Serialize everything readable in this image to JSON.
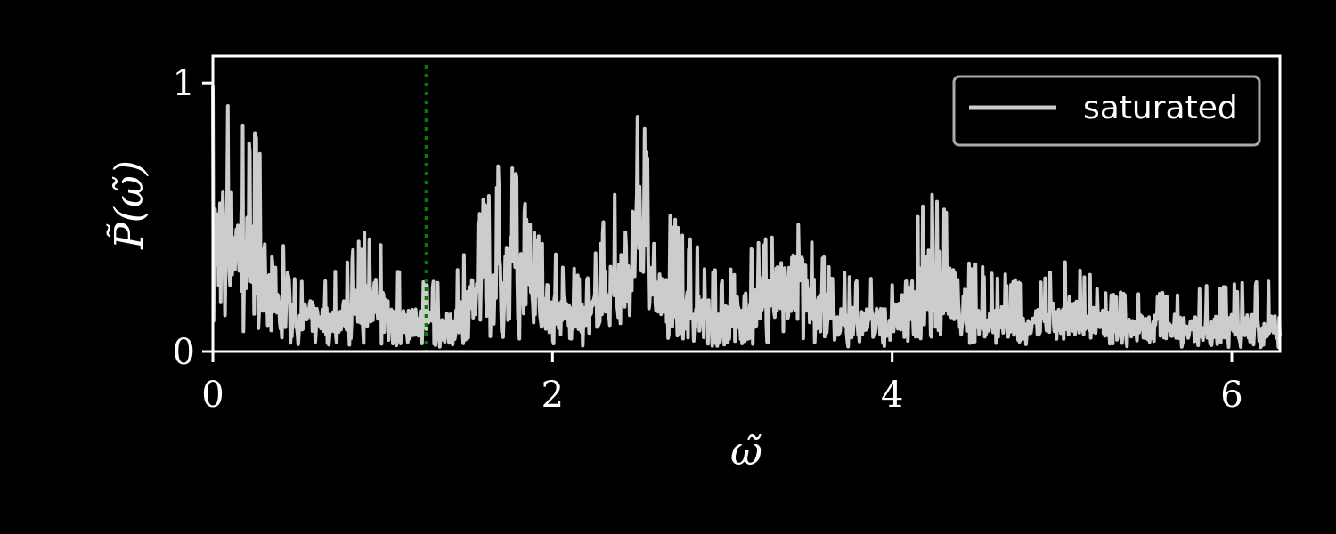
{
  "chart_data": {
    "type": "line",
    "title": "",
    "xlabel": "ω̃",
    "ylabel": "P̃(ω̃)",
    "xlim": [
      0,
      6.2832
    ],
    "ylim": [
      0,
      1.1
    ],
    "xticks": [
      0,
      2,
      4,
      6
    ],
    "xtick_labels": [
      "0",
      "2",
      "4",
      "6"
    ],
    "yticks": [
      0,
      1
    ],
    "ytick_labels": [
      "0",
      "1"
    ],
    "grid": false,
    "legend_position": "upper right",
    "vline": {
      "x": 1.257,
      "color": "#008000",
      "style": "dotted"
    },
    "series": [
      {
        "name": "saturated",
        "color": "#cccccc",
        "envelope": [
          {
            "x": 0.0,
            "base": 0.45,
            "peak": 1.0
          },
          {
            "x": 0.1,
            "base": 0.45,
            "peak": 1.02
          },
          {
            "x": 0.25,
            "base": 0.35,
            "peak": 0.82
          },
          {
            "x": 0.35,
            "base": 0.25,
            "peak": 0.6
          },
          {
            "x": 0.45,
            "base": 0.15,
            "peak": 0.3
          },
          {
            "x": 0.7,
            "base": 0.12,
            "peak": 0.3
          },
          {
            "x": 0.95,
            "base": 0.2,
            "peak": 0.5
          },
          {
            "x": 1.1,
            "base": 0.12,
            "peak": 0.3
          },
          {
            "x": 1.4,
            "base": 0.1,
            "peak": 0.25
          },
          {
            "x": 1.6,
            "base": 0.25,
            "peak": 0.6
          },
          {
            "x": 1.75,
            "base": 0.35,
            "peak": 0.78
          },
          {
            "x": 1.9,
            "base": 0.2,
            "peak": 0.45
          },
          {
            "x": 2.2,
            "base": 0.12,
            "peak": 0.28
          },
          {
            "x": 2.4,
            "base": 0.3,
            "peak": 0.7
          },
          {
            "x": 2.52,
            "base": 0.45,
            "peak": 0.93
          },
          {
            "x": 2.65,
            "base": 0.2,
            "peak": 0.55
          },
          {
            "x": 3.0,
            "base": 0.12,
            "peak": 0.28
          },
          {
            "x": 3.3,
            "base": 0.22,
            "peak": 0.48
          },
          {
            "x": 3.45,
            "base": 0.28,
            "peak": 0.52
          },
          {
            "x": 3.65,
            "base": 0.12,
            "peak": 0.3
          },
          {
            "x": 4.0,
            "base": 0.12,
            "peak": 0.28
          },
          {
            "x": 4.15,
            "base": 0.25,
            "peak": 0.55
          },
          {
            "x": 4.27,
            "base": 0.3,
            "peak": 0.64
          },
          {
            "x": 4.45,
            "base": 0.15,
            "peak": 0.35
          },
          {
            "x": 4.8,
            "base": 0.1,
            "peak": 0.25
          },
          {
            "x": 5.05,
            "base": 0.15,
            "peak": 0.35
          },
          {
            "x": 5.3,
            "base": 0.1,
            "peak": 0.22
          },
          {
            "x": 5.8,
            "base": 0.1,
            "peak": 0.25
          },
          {
            "x": 6.28,
            "base": 0.1,
            "peak": 0.27
          }
        ]
      }
    ]
  }
}
